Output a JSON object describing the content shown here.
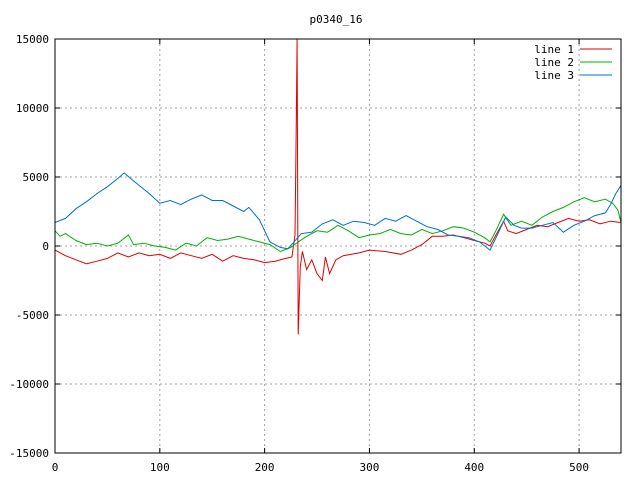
{
  "chart_data": {
    "type": "line",
    "title": "p0340_16",
    "xlabel": "",
    "ylabel": "",
    "xlim": [
      0,
      540
    ],
    "ylim": [
      -15000,
      15000
    ],
    "grid": true,
    "legend_position": "top-right",
    "xticks": [
      0,
      100,
      200,
      300,
      400,
      500
    ],
    "yticks": [
      -15000,
      -10000,
      -5000,
      0,
      5000,
      10000,
      15000
    ],
    "x_tick_labels": [
      "0",
      "100",
      "200",
      "300",
      "400",
      "500"
    ],
    "y_tick_labels": [
      "-15000",
      "-10000",
      "-5000",
      "0",
      "5000",
      "10000",
      "15000"
    ],
    "series": [
      {
        "name": "line 1",
        "color": "#e00000",
        "points": [
          [
            0,
            -300
          ],
          [
            10,
            -700
          ],
          [
            20,
            -1000
          ],
          [
            30,
            -1300
          ],
          [
            40,
            -1100
          ],
          [
            50,
            -900
          ],
          [
            60,
            -500
          ],
          [
            70,
            -800
          ],
          [
            80,
            -500
          ],
          [
            90,
            -700
          ],
          [
            100,
            -600
          ],
          [
            110,
            -900
          ],
          [
            120,
            -500
          ],
          [
            130,
            -700
          ],
          [
            140,
            -900
          ],
          [
            150,
            -600
          ],
          [
            160,
            -1100
          ],
          [
            170,
            -700
          ],
          [
            180,
            -900
          ],
          [
            190,
            -1000
          ],
          [
            200,
            -1200
          ],
          [
            210,
            -1100
          ],
          [
            220,
            -900
          ],
          [
            226,
            -800
          ],
          [
            229,
            800
          ],
          [
            230,
            7800
          ],
          [
            231,
            15000
          ],
          [
            232,
            -6400
          ],
          [
            233,
            -4000
          ],
          [
            234,
            -1500
          ],
          [
            236,
            -400
          ],
          [
            240,
            -1700
          ],
          [
            245,
            -1000
          ],
          [
            250,
            -2000
          ],
          [
            255,
            -2500
          ],
          [
            258,
            -800
          ],
          [
            262,
            -2000
          ],
          [
            268,
            -1000
          ],
          [
            275,
            -700
          ],
          [
            290,
            -500
          ],
          [
            300,
            -300
          ],
          [
            315,
            -400
          ],
          [
            330,
            -600
          ],
          [
            340,
            -300
          ],
          [
            350,
            100
          ],
          [
            360,
            700
          ],
          [
            370,
            700
          ],
          [
            380,
            800
          ],
          [
            390,
            600
          ],
          [
            400,
            400
          ],
          [
            410,
            200
          ],
          [
            415,
            0
          ],
          [
            420,
            700
          ],
          [
            428,
            1800
          ],
          [
            432,
            1100
          ],
          [
            440,
            900
          ],
          [
            450,
            1200
          ],
          [
            460,
            1500
          ],
          [
            470,
            1400
          ],
          [
            480,
            1700
          ],
          [
            490,
            2000
          ],
          [
            500,
            1800
          ],
          [
            510,
            1900
          ],
          [
            520,
            1600
          ],
          [
            530,
            1800
          ],
          [
            540,
            1700
          ]
        ]
      },
      {
        "name": "line 2",
        "color": "#00b000",
        "points": [
          [
            0,
            1100
          ],
          [
            5,
            700
          ],
          [
            10,
            900
          ],
          [
            20,
            400
          ],
          [
            30,
            100
          ],
          [
            40,
            200
          ],
          [
            50,
            0
          ],
          [
            60,
            200
          ],
          [
            65,
            500
          ],
          [
            70,
            800
          ],
          [
            75,
            100
          ],
          [
            85,
            200
          ],
          [
            95,
            0
          ],
          [
            105,
            -100
          ],
          [
            115,
            -300
          ],
          [
            125,
            200
          ],
          [
            135,
            0
          ],
          [
            145,
            600
          ],
          [
            155,
            400
          ],
          [
            165,
            500
          ],
          [
            175,
            700
          ],
          [
            185,
            500
          ],
          [
            195,
            300
          ],
          [
            205,
            100
          ],
          [
            215,
            -400
          ],
          [
            225,
            -100
          ],
          [
            232,
            300
          ],
          [
            240,
            700
          ],
          [
            250,
            1100
          ],
          [
            260,
            1000
          ],
          [
            270,
            1500
          ],
          [
            280,
            1100
          ],
          [
            290,
            600
          ],
          [
            300,
            800
          ],
          [
            310,
            900
          ],
          [
            320,
            1200
          ],
          [
            330,
            900
          ],
          [
            340,
            800
          ],
          [
            350,
            1200
          ],
          [
            360,
            900
          ],
          [
            370,
            1100
          ],
          [
            380,
            1400
          ],
          [
            390,
            1300
          ],
          [
            400,
            1000
          ],
          [
            410,
            600
          ],
          [
            415,
            300
          ],
          [
            420,
            1000
          ],
          [
            428,
            2300
          ],
          [
            435,
            1500
          ],
          [
            445,
            1800
          ],
          [
            455,
            1500
          ],
          [
            465,
            2100
          ],
          [
            475,
            2500
          ],
          [
            485,
            2800
          ],
          [
            495,
            3200
          ],
          [
            505,
            3500
          ],
          [
            515,
            3200
          ],
          [
            525,
            3400
          ],
          [
            532,
            3100
          ],
          [
            537,
            2600
          ],
          [
            540,
            1700
          ]
        ]
      },
      {
        "name": "line 3",
        "color": "#0070d0",
        "points": [
          [
            0,
            1700
          ],
          [
            10,
            2000
          ],
          [
            20,
            2700
          ],
          [
            30,
            3200
          ],
          [
            40,
            3800
          ],
          [
            50,
            4300
          ],
          [
            60,
            4900
          ],
          [
            66,
            5300
          ],
          [
            72,
            4900
          ],
          [
            80,
            4400
          ],
          [
            90,
            3800
          ],
          [
            100,
            3100
          ],
          [
            110,
            3300
          ],
          [
            120,
            3000
          ],
          [
            130,
            3400
          ],
          [
            140,
            3700
          ],
          [
            150,
            3300
          ],
          [
            160,
            3300
          ],
          [
            170,
            2900
          ],
          [
            180,
            2500
          ],
          [
            185,
            2800
          ],
          [
            195,
            1900
          ],
          [
            205,
            300
          ],
          [
            215,
            -100
          ],
          [
            222,
            -200
          ],
          [
            228,
            300
          ],
          [
            235,
            900
          ],
          [
            245,
            1000
          ],
          [
            255,
            1600
          ],
          [
            265,
            1900
          ],
          [
            275,
            1500
          ],
          [
            285,
            1800
          ],
          [
            295,
            1700
          ],
          [
            305,
            1500
          ],
          [
            315,
            2000
          ],
          [
            325,
            1800
          ],
          [
            335,
            2200
          ],
          [
            345,
            1800
          ],
          [
            355,
            1400
          ],
          [
            365,
            1200
          ],
          [
            375,
            800
          ],
          [
            385,
            700
          ],
          [
            395,
            600
          ],
          [
            405,
            300
          ],
          [
            415,
            -300
          ],
          [
            422,
            800
          ],
          [
            430,
            2100
          ],
          [
            438,
            1500
          ],
          [
            445,
            1300
          ],
          [
            455,
            1300
          ],
          [
            465,
            1500
          ],
          [
            475,
            1700
          ],
          [
            485,
            1000
          ],
          [
            495,
            1500
          ],
          [
            505,
            1800
          ],
          [
            515,
            2200
          ],
          [
            525,
            2400
          ],
          [
            530,
            3000
          ],
          [
            535,
            3800
          ],
          [
            540,
            4400
          ]
        ]
      }
    ]
  }
}
